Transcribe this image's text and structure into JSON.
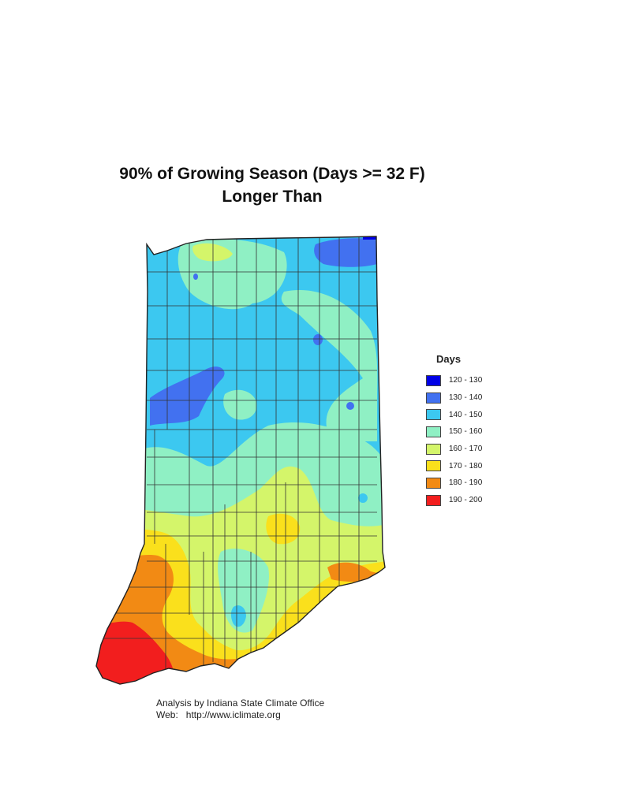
{
  "title": {
    "line1": "90% of Growing Season (Days >= 32 F)",
    "line2": "Longer Than"
  },
  "legend": {
    "title": "Days",
    "items": [
      {
        "label": "120 - 130",
        "color": "#0000e6"
      },
      {
        "label": "130 - 140",
        "color": "#4271f0"
      },
      {
        "label": "140 - 150",
        "color": "#3cc8f0"
      },
      {
        "label": "150 - 160",
        "color": "#8ff0c4"
      },
      {
        "label": "160 - 170",
        "color": "#d4f56a"
      },
      {
        "label": "170 - 180",
        "color": "#fae01c"
      },
      {
        "label": "180 - 190",
        "color": "#f28a14"
      },
      {
        "label": "190 - 200",
        "color": "#f21e1e"
      }
    ]
  },
  "credit": {
    "line1": "Analysis by Indiana State Climate Office",
    "line2": "Web:   http://www.iclimate.org"
  }
}
